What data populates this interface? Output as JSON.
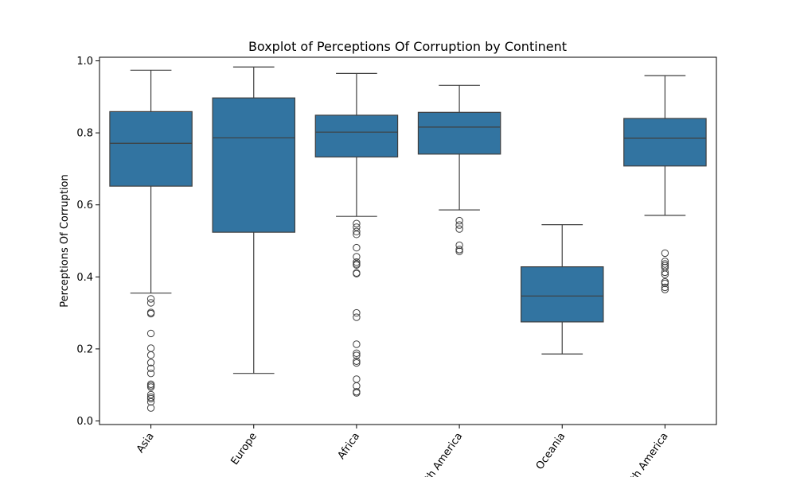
{
  "chart_data": {
    "type": "box",
    "title": "Boxplot of Perceptions Of Corruption by Continent",
    "xlabel": "",
    "ylabel": "Perceptions Of Corruption",
    "ylim": [
      -0.01,
      1.01
    ],
    "yticks": [
      "0.0",
      "0.2",
      "0.4",
      "0.6",
      "0.8",
      "1.0"
    ],
    "color": "#3274a1",
    "grid": false,
    "categories": [
      "Asia",
      "Europe",
      "Africa",
      "North America",
      "Oceania",
      "South America"
    ],
    "boxes": [
      {
        "category": "Asia",
        "whisker_low": 0.355,
        "q1": 0.652,
        "median": 0.771,
        "q3": 0.859,
        "whisker_high": 0.974,
        "outliers": [
          0.339,
          0.328,
          0.301,
          0.298,
          0.243,
          0.202,
          0.183,
          0.162,
          0.146,
          0.132,
          0.102,
          0.098,
          0.094,
          0.073,
          0.066,
          0.062,
          0.053,
          0.036
        ]
      },
      {
        "category": "Europe",
        "whisker_low": 0.132,
        "q1": 0.524,
        "median": 0.786,
        "q3": 0.897,
        "whisker_high": 0.983,
        "outliers": []
      },
      {
        "category": "Africa",
        "whisker_low": 0.568,
        "q1": 0.733,
        "median": 0.802,
        "q3": 0.849,
        "whisker_high": 0.965,
        "outliers": [
          0.548,
          0.538,
          0.526,
          0.518,
          0.481,
          0.456,
          0.441,
          0.436,
          0.433,
          0.411,
          0.409,
          0.3,
          0.288,
          0.213,
          0.188,
          0.182,
          0.166,
          0.161,
          0.116,
          0.097,
          0.081,
          0.078
        ]
      },
      {
        "category": "North America",
        "whisker_low": 0.586,
        "q1": 0.741,
        "median": 0.816,
        "q3": 0.857,
        "whisker_high": 0.932,
        "outliers": [
          0.556,
          0.544,
          0.533,
          0.488,
          0.476,
          0.471
        ]
      },
      {
        "category": "Oceania",
        "whisker_low": 0.186,
        "q1": 0.275,
        "median": 0.347,
        "q3": 0.428,
        "whisker_high": 0.545,
        "outliers": []
      },
      {
        "category": "South America",
        "whisker_low": 0.571,
        "q1": 0.708,
        "median": 0.785,
        "q3": 0.84,
        "whisker_high": 0.959,
        "outliers": [
          0.466,
          0.443,
          0.436,
          0.431,
          0.426,
          0.413,
          0.407,
          0.386,
          0.382,
          0.371,
          0.365
        ]
      }
    ]
  }
}
